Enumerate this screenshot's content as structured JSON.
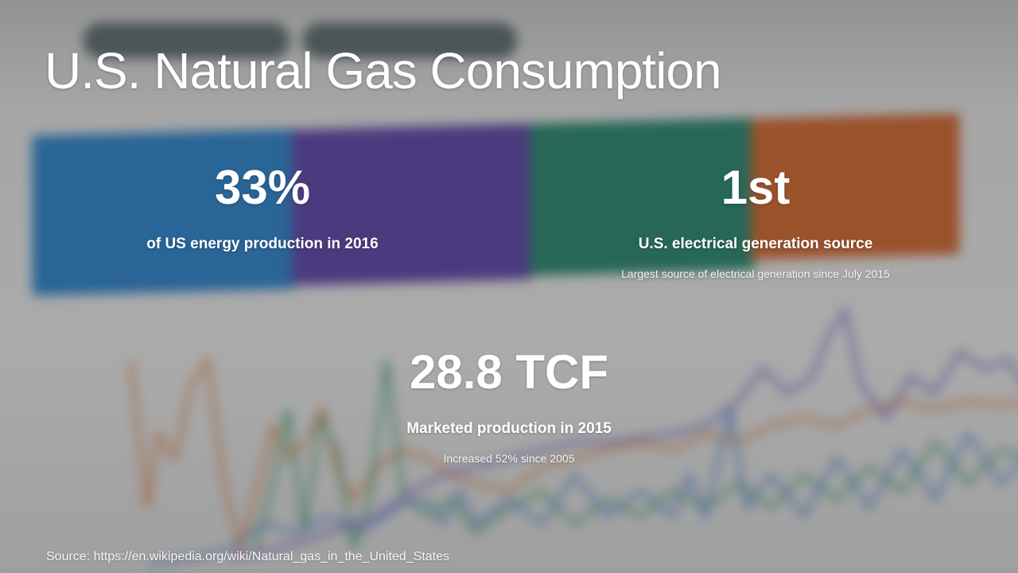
{
  "slide": {
    "title": "U.S. Natural Gas Consumption",
    "stats": [
      {
        "value": "33%",
        "label": "of US energy production in 2016",
        "note": ""
      },
      {
        "value": "1st",
        "label": "U.S. electrical generation source",
        "note": "Largest source of electrical generation since July 2015"
      },
      {
        "value": "28.8 TCF",
        "label": "Marketed production in 2015",
        "note": "Increased 52% since 2005"
      }
    ],
    "source": "Source: https://en.wikipedia.org/wiki/Natural_gas_in_the_United_States"
  },
  "colors": {
    "overlay_text": "#ffffff",
    "bg_blue": "#2f86cf",
    "bg_purple": "#6248ad",
    "bg_green": "#2b8a74",
    "bg_orange": "#d56a32"
  }
}
